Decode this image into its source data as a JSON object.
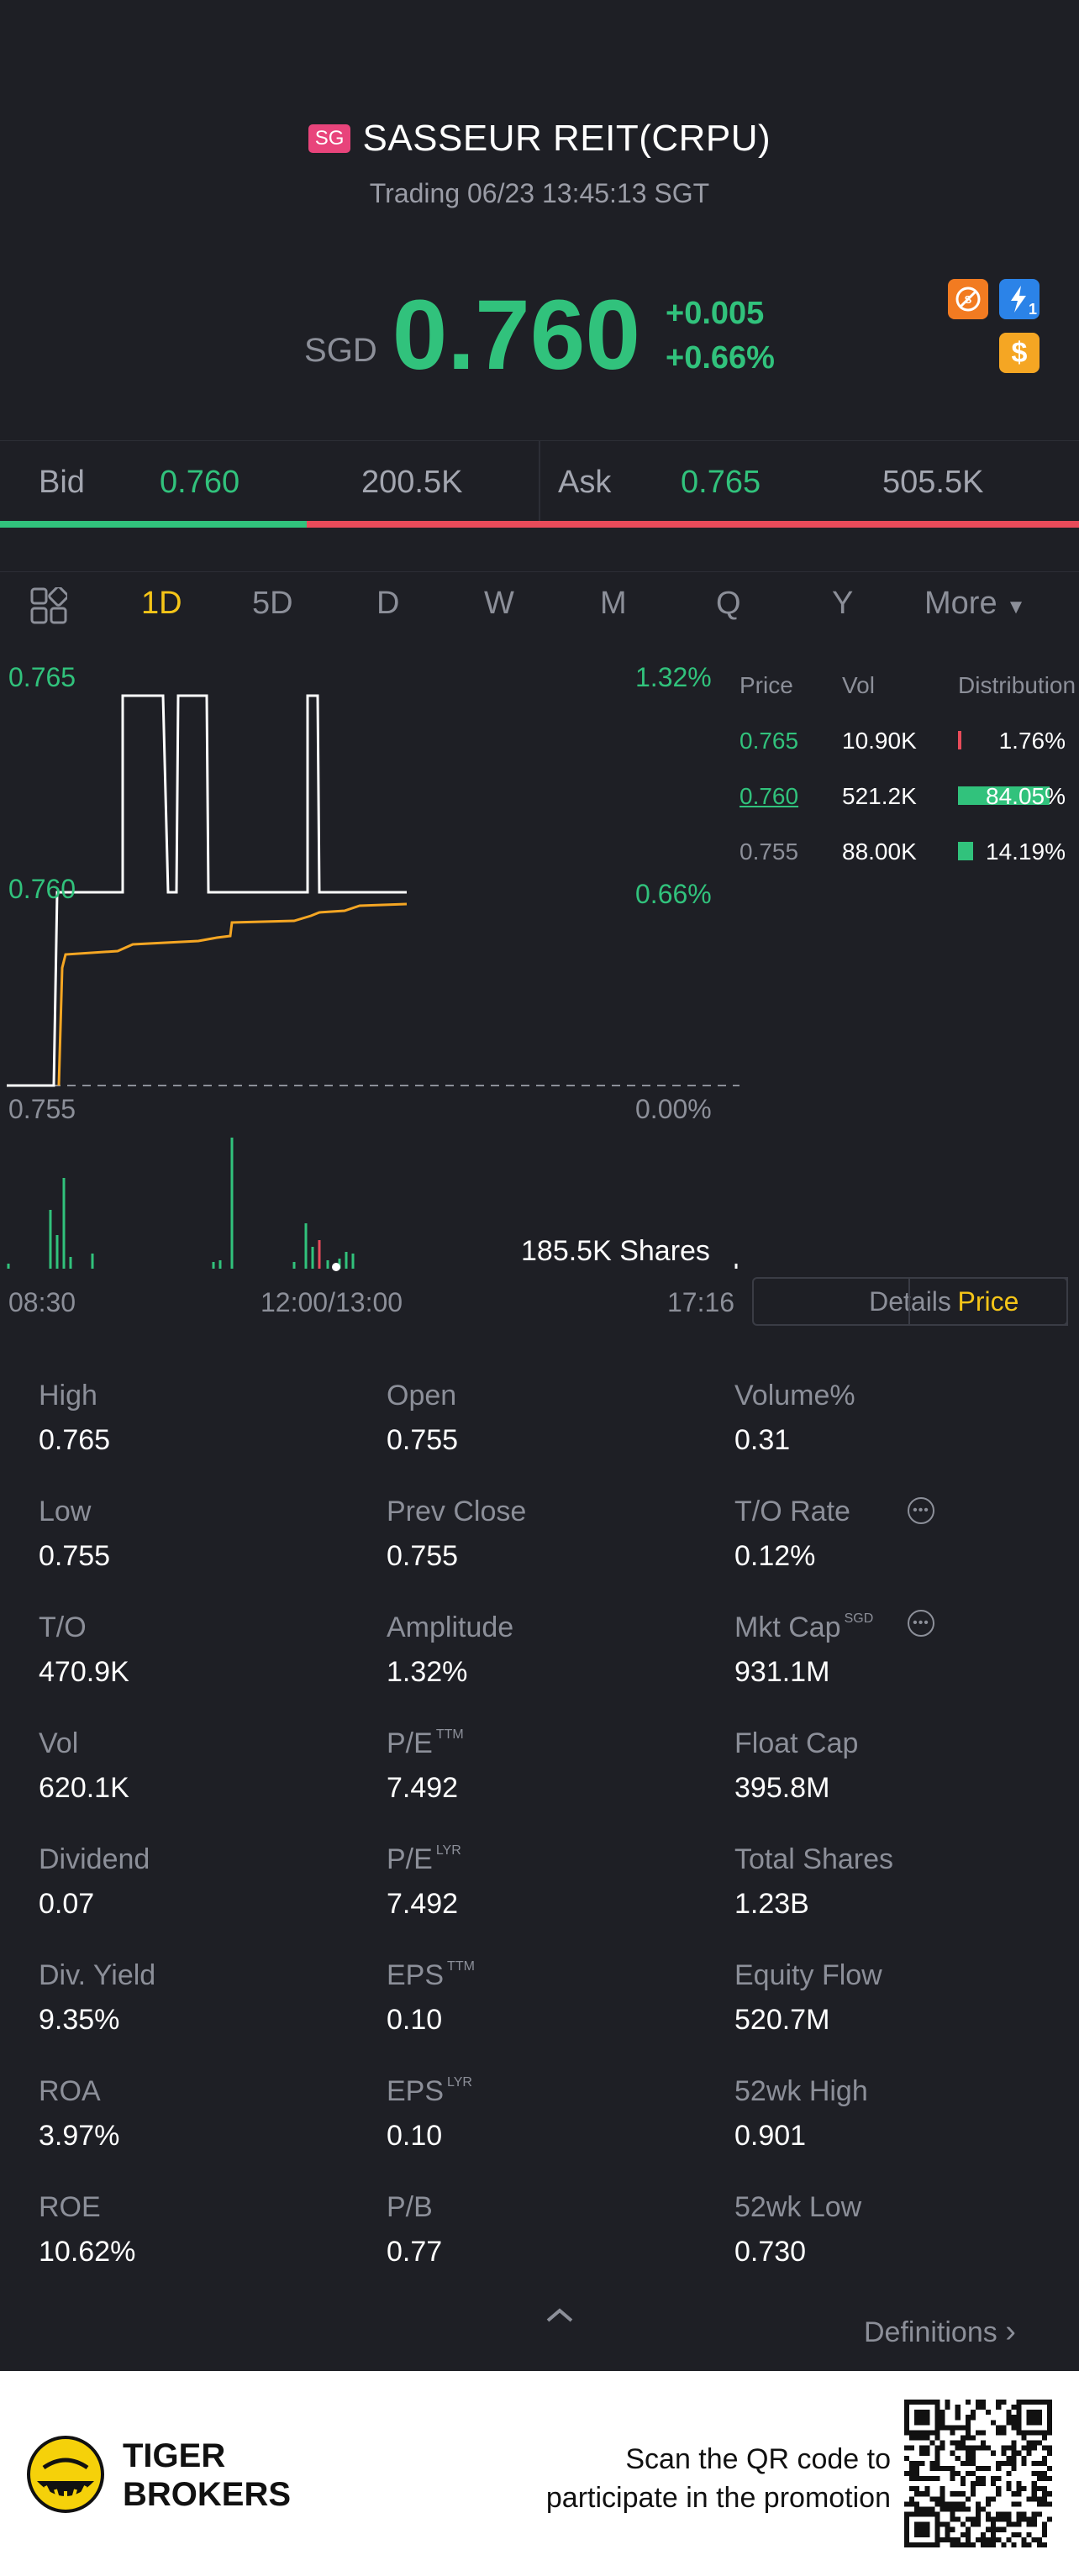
{
  "header": {
    "market_badge": "SG",
    "title": "SASSEUR REIT(CRPU)",
    "status": "Trading 06/23 13:45:13 SGT"
  },
  "quote": {
    "currency": "SGD",
    "price": "0.760",
    "change": "+0.005",
    "change_pct": "+0.66%",
    "icons": [
      "no-short-icon",
      "lightning-icon",
      "dollar-icon"
    ],
    "lightning_badge": "1",
    "dollar_symbol": "$"
  },
  "bid_ask": {
    "bid_label": "Bid",
    "bid_price": "0.760",
    "bid_vol": "200.5K",
    "ask_label": "Ask",
    "ask_price": "0.765",
    "ask_vol": "505.5K",
    "bid_share": 0.284
  },
  "tabs": {
    "items": [
      "1D",
      "5D",
      "D",
      "W",
      "M",
      "Q",
      "Y",
      "More"
    ],
    "active": "1D"
  },
  "chart": {
    "y_left_top": "0.765",
    "y_left_mid": "0.760",
    "y_left_bottom": "0.755",
    "y_right_top": "1.32%",
    "y_right_mid": "0.66%",
    "y_right_bottom": "0.00%",
    "volume_label": "185.5K Shares",
    "x_start": "08:30",
    "x_mid": "12:00/13:00",
    "x_end": "17:16",
    "segment_details": "Details",
    "segment_price": "Price"
  },
  "chart_data": {
    "type": "line",
    "y_range": [
      0.755,
      0.765
    ],
    "series": [],
    "note_colors": {
      "price_line": "#ffffff",
      "avg_line": "#f5a623",
      "baseline": "#8c8f99"
    }
  },
  "price_volume": {
    "headers": [
      "Price",
      "Vol",
      "Distribution"
    ],
    "rows": [
      {
        "price": "0.765",
        "vol": "10.90K",
        "dist": "1.76%",
        "share": 0.0176,
        "color": "#e84b5a"
      },
      {
        "price": "0.760",
        "vol": "521.2K",
        "dist": "84.05%",
        "share": 0.8405,
        "color": "#31c27c"
      },
      {
        "price": "0.755",
        "vol": "88.00K",
        "dist": "14.19%",
        "share": 0.1419,
        "color": "#31c27c"
      }
    ]
  },
  "stats": [
    [
      {
        "label": "High",
        "value": "0.765"
      },
      {
        "label": "Open",
        "value": "0.755"
      },
      {
        "label": "Volume%",
        "value": "0.31"
      }
    ],
    [
      {
        "label": "Low",
        "value": "0.755"
      },
      {
        "label": "Prev Close",
        "value": "0.755"
      },
      {
        "label": "T/O Rate",
        "value": "0.12%"
      }
    ],
    [
      {
        "label": "T/O",
        "value": "470.9K"
      },
      {
        "label": "Amplitude",
        "value": "1.32%"
      },
      {
        "label": "Mkt Cap",
        "value": "931.1M",
        "sup": "SGD"
      }
    ],
    [
      {
        "label": "Vol",
        "value": "620.1K"
      },
      {
        "label": "P/E",
        "value": "7.492",
        "sup": "TTM"
      },
      {
        "label": "Float Cap",
        "value": "395.8M"
      }
    ],
    [
      {
        "label": "Dividend",
        "value": "0.07"
      },
      {
        "label": "P/E",
        "value": "7.492",
        "sup": "LYR"
      },
      {
        "label": "Total Shares",
        "value": "1.23B"
      }
    ],
    [
      {
        "label": "Div. Yield",
        "value": "9.35%"
      },
      {
        "label": "EPS",
        "value": "0.10",
        "sup": "TTM"
      },
      {
        "label": "Equity Flow",
        "value": "520.7M"
      }
    ],
    [
      {
        "label": "ROA",
        "value": "3.97%"
      },
      {
        "label": "EPS",
        "value": "0.10",
        "sup": "LYR"
      },
      {
        "label": "52wk High",
        "value": "0.901"
      }
    ],
    [
      {
        "label": "ROE",
        "value": "10.62%"
      },
      {
        "label": "P/B",
        "value": "0.77"
      },
      {
        "label": "52wk Low",
        "value": "0.730"
      }
    ]
  ],
  "definitions_label": "Definitions",
  "footer": {
    "brand_line1": "TIGER",
    "brand_line2": "BROKERS",
    "scan_line1": "Scan the QR code to",
    "scan_line2": "participate in the promotion"
  }
}
